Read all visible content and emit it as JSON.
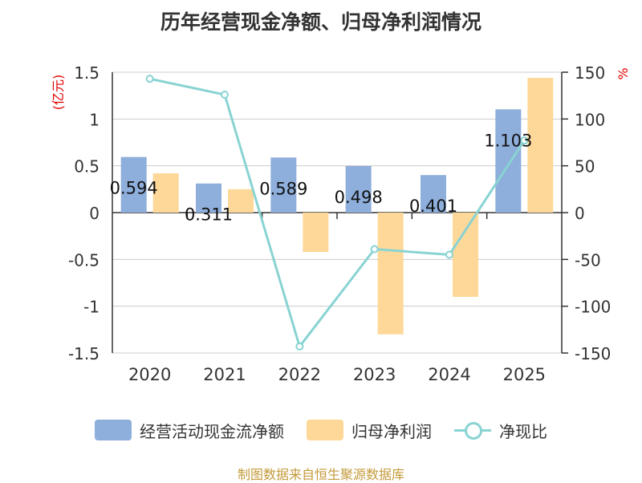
{
  "chart_data": {
    "type": "bar+line",
    "title": "历年经营现金净额、归母净利润情况",
    "categories": [
      "2020",
      "2021",
      "2022",
      "2023",
      "2024",
      "2025"
    ],
    "y_left": {
      "label": "(亿元)",
      "ylim": [
        -1.5,
        1.5
      ],
      "ticks": [
        1.5,
        1,
        0.5,
        0,
        -0.5,
        -1,
        -1.5
      ]
    },
    "y_right": {
      "label": "%",
      "ylim": [
        -150,
        150
      ],
      "ticks": [
        150,
        100,
        50,
        0,
        -50,
        -100,
        -150
      ]
    },
    "grid": true,
    "legend_position": "bottom",
    "series": [
      {
        "name": "经营活动现金流净额",
        "type": "bar",
        "axis": "left",
        "color": "#8eaedb",
        "values": [
          0.594,
          0.311,
          0.589,
          0.498,
          0.401,
          1.103
        ],
        "data_labels": [
          "0.594",
          "0.311",
          "0.589",
          "0.498",
          "0.401",
          "1.103"
        ]
      },
      {
        "name": "归母净利润",
        "type": "bar",
        "axis": "left",
        "color": "#fed898",
        "values": [
          0.42,
          0.25,
          -0.42,
          -1.3,
          -0.9,
          1.44
        ]
      },
      {
        "name": "净现比",
        "type": "line",
        "axis": "right",
        "color": "#89d3d3",
        "values": [
          143,
          126,
          -143,
          -39,
          -45,
          77
        ]
      }
    ]
  },
  "source_note": "制图数据来自恒生聚源数据库"
}
